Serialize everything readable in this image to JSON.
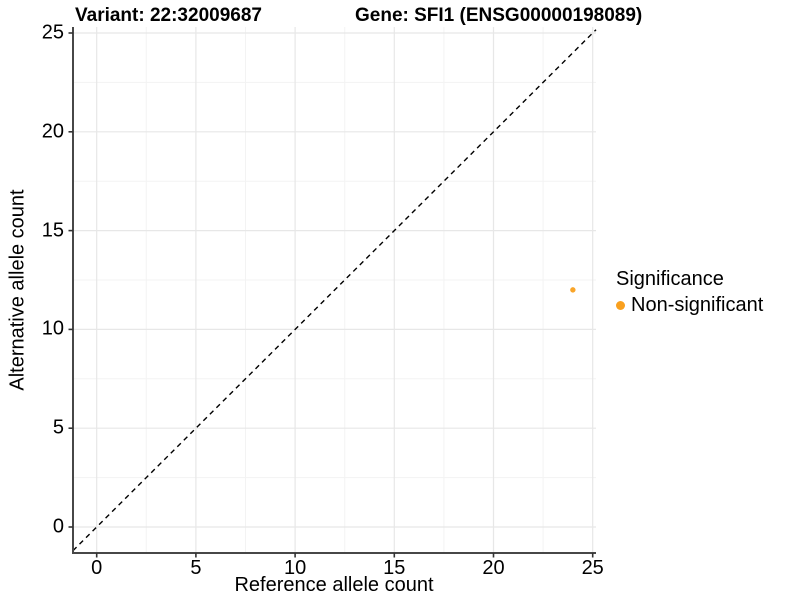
{
  "titles": {
    "left": "Variant: 22:32009687",
    "right": "Gene: SFI1 (ENSG00000198089)"
  },
  "chart_data": {
    "type": "scatter",
    "title": "Variant: 22:32009687 | Gene: SFI1 (ENSG00000198089)",
    "xlabel": "Reference allele count",
    "ylabel": "Alternative allele count",
    "xlim": [
      0,
      25
    ],
    "ylim": [
      0,
      25
    ],
    "xticks": [
      0,
      5,
      10,
      15,
      20,
      25
    ],
    "yticks": [
      0,
      5,
      10,
      15,
      20,
      25
    ],
    "minor_ticks_x": [
      2.5,
      7.5,
      12.5,
      17.5,
      22.5
    ],
    "minor_ticks_y": [
      2.5,
      7.5,
      12.5,
      17.5,
      22.5
    ],
    "grid": "major-and-minor",
    "identity_line": {
      "slope": 1,
      "intercept": 0,
      "style": "dashed",
      "color": "#000000"
    },
    "series": [
      {
        "name": "Non-significant",
        "color": "#F9A01F",
        "points": [
          {
            "x": 24,
            "y": 12
          }
        ]
      }
    ],
    "legend": {
      "title": "Significance",
      "position": "right",
      "entries": [
        {
          "label": "Non-significant",
          "color": "#F9A01F"
        }
      ]
    }
  },
  "colors": {
    "point": "#F9A01F",
    "axis_line": "#474747",
    "tick_mark": "#333333",
    "grid_major": "#E7E7E7",
    "grid_minor": "#F3F3F3",
    "text": "#000000"
  }
}
